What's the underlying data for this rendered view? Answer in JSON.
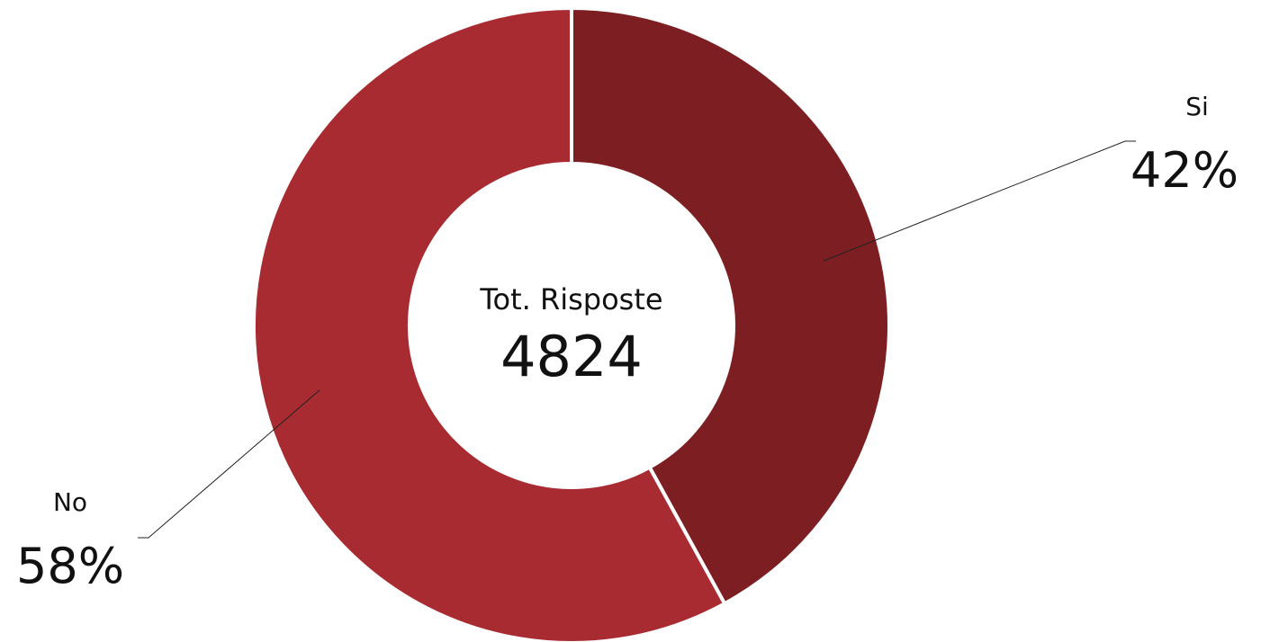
{
  "chart_data": {
    "type": "pie",
    "variant": "donut",
    "center_label": "Tot. Risposte",
    "center_value": "4824",
    "slices": [
      {
        "label": "Si",
        "percent_text": "42%",
        "value": 42,
        "color": "#7d1f22"
      },
      {
        "label": "No",
        "percent_text": "58%",
        "value": 58,
        "color": "#a82b32"
      }
    ],
    "legend": "none",
    "separator_color": "#ffffff"
  }
}
